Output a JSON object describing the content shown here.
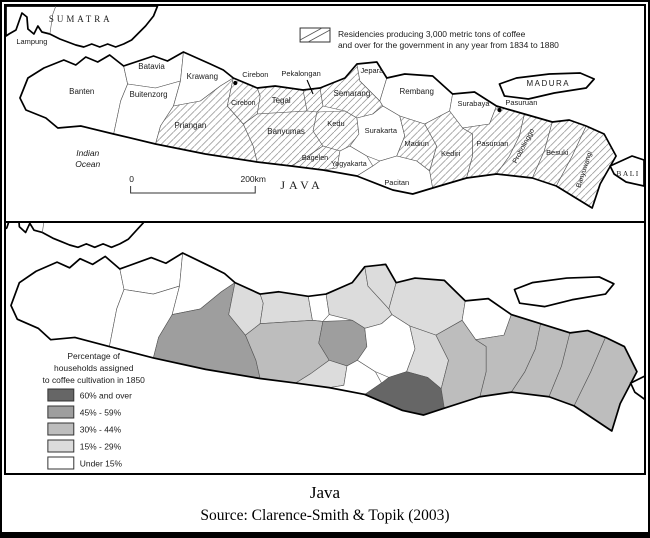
{
  "caption": {
    "title": "Java",
    "source": "Source: Clarence-Smith &amp; Topik (2003)"
  },
  "categories": {
    "over60": {
      "label": "60% and over",
      "color": "#666666"
    },
    "p45_59": {
      "label": "45% - 59%",
      "color": "#9e9e9e"
    },
    "p30_44": {
      "label": "30% - 44%",
      "color": "#bdbdbd"
    },
    "p15_29": {
      "label": "15% - 29%",
      "color": "#dcdcdc"
    },
    "under15": {
      "label": "Under 15%",
      "color": "#ffffff"
    }
  },
  "legend_order": [
    "over60",
    "p45_59",
    "p30_44",
    "p15_29",
    "under15"
  ],
  "top_map": {
    "legend_lines": [
      "Residencies producing 3,000 metric tons of coffee",
      "and over for the government in any year from 1834 to 1880"
    ],
    "place_labels": {
      "sumatra": "SUMATRA",
      "lampung": "Lampung",
      "java": "JAVA",
      "madura": "MADURA",
      "bali": "BALI",
      "indian_ocean": [
        "Indian",
        "Ocean"
      ]
    },
    "scale_bar": {
      "start": "0",
      "end": "200km"
    },
    "cities": [
      {
        "id": "cirebon",
        "label": "Cirebon"
      },
      {
        "id": "pasuruan",
        "label": "Pasuruan"
      }
    ]
  },
  "bottom_map": {
    "legend_title_lines": [
      "Percentage of",
      "households assigned",
      "to coffee cultivation in 1850"
    ]
  },
  "regions": [
    {
      "id": "banten",
      "label": "Banten",
      "hatched": false,
      "category": "under15"
    },
    {
      "id": "batavia",
      "label": "Batavia",
      "hatched": false,
      "category": "under15"
    },
    {
      "id": "buitenzorg",
      "label": "Buitenzorg",
      "hatched": false,
      "category": "under15"
    },
    {
      "id": "krawang",
      "label": "Krawang",
      "hatched": false,
      "category": "under15"
    },
    {
      "id": "priangan",
      "label": "Priangan",
      "hatched": true,
      "category": "p45_59"
    },
    {
      "id": "cirebon",
      "label": "Cirebon",
      "hatched": true,
      "category": "p15_29"
    },
    {
      "id": "tegal",
      "label": "Tegal",
      "hatched": true,
      "category": "p15_29"
    },
    {
      "id": "pekalongan",
      "label": "Pekalongan",
      "hatched": true,
      "category": "under15"
    },
    {
      "id": "semarang",
      "label": "Semarang",
      "hatched": true,
      "category": "p15_29"
    },
    {
      "id": "jepara",
      "label": "Jepara",
      "hatched": false,
      "category": "p15_29"
    },
    {
      "id": "rembang",
      "label": "Rembang",
      "hatched": false,
      "category": "p15_29"
    },
    {
      "id": "banyumas",
      "label": "Banyumas",
      "hatched": true,
      "category": "p30_44"
    },
    {
      "id": "kedu",
      "label": "Kedu",
      "hatched": true,
      "category": "p45_59"
    },
    {
      "id": "bagelen",
      "label": "Bagelen",
      "hatched": true,
      "category": "p15_29"
    },
    {
      "id": "yogyakarta",
      "label": "Yogyakarta",
      "hatched": false,
      "category": "under15"
    },
    {
      "id": "surakarta",
      "label": "Surakarta",
      "hatched": false,
      "category": "under15"
    },
    {
      "id": "madiun",
      "label": "Madiun",
      "hatched": true,
      "category": "p15_29"
    },
    {
      "id": "pacitan",
      "label": "Pacitan",
      "hatched": false,
      "category": "over60"
    },
    {
      "id": "surabaya",
      "label": "Surabaya",
      "hatched": false,
      "category": "under15"
    },
    {
      "id": "kediri",
      "label": "Kediri",
      "hatched": true,
      "category": "p30_44"
    },
    {
      "id": "pasuruan",
      "label": "Pasuruan",
      "hatched": true,
      "category": "p30_44"
    },
    {
      "id": "probolinggo",
      "label": "Probolinggo",
      "hatched": true,
      "category": "p30_44"
    },
    {
      "id": "besuki",
      "label": "Besuki",
      "hatched": true,
      "category": "p30_44"
    },
    {
      "id": "banyuwangi",
      "label": "Banyuwangi",
      "hatched": true,
      "category": "p30_44"
    }
  ]
}
